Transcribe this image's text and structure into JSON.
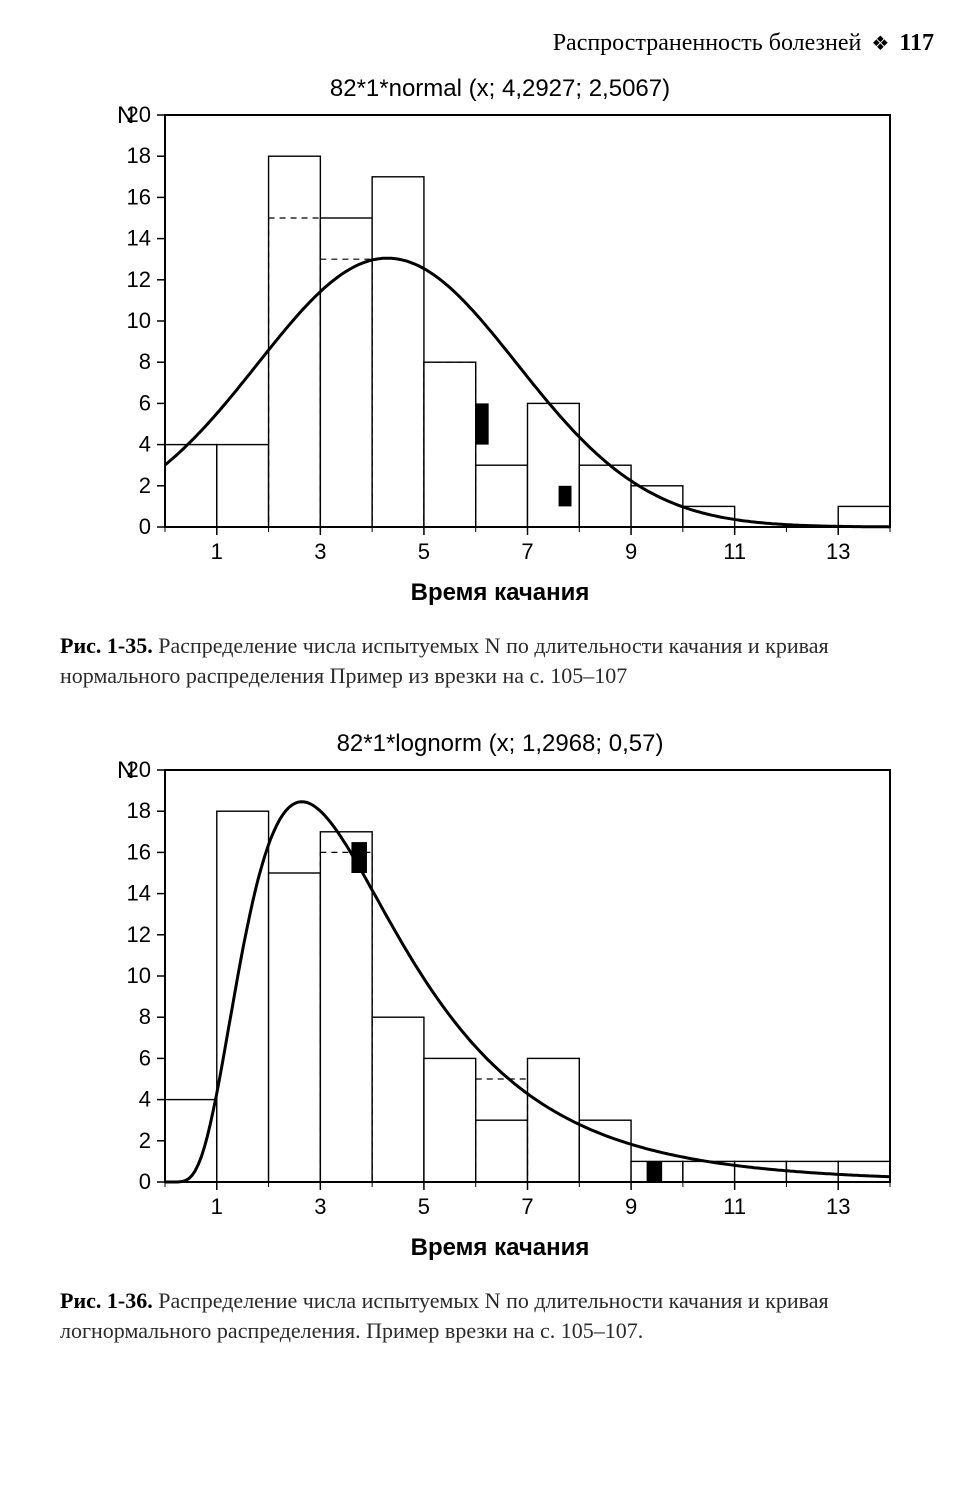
{
  "header": {
    "section_title": "Распространенность болезней",
    "page_number": "117"
  },
  "figure1": {
    "title": "82*1*normal  (x; 4,2927; 2,5067)",
    "ylabel": "N",
    "xlabel": "Время качания",
    "type": "histogram_with_curve",
    "xlim": [
      0,
      14
    ],
    "ylim": [
      0,
      20
    ],
    "ytick_step": 2,
    "xtick_start": 1,
    "xtick_step": 2,
    "xtick_end": 13,
    "bin_width": 1,
    "bar_fill": "#ffffff",
    "bar_stroke": "#000000",
    "bar_stroke_width": 1.4,
    "bars": [
      {
        "x": 0,
        "y": 4.0
      },
      {
        "x": 1,
        "y": 4.0
      },
      {
        "x": 2,
        "y": 18.0
      },
      {
        "x": 3,
        "y": 15.0
      },
      {
        "x": 4,
        "y": 17.0
      },
      {
        "x": 5,
        "y": 8.0
      },
      {
        "x": 6,
        "y": 3.0
      },
      {
        "x": 7,
        "y": 6.0
      },
      {
        "x": 8,
        "y": 3.0
      },
      {
        "x": 9,
        "y": 2.0
      },
      {
        "x": 10,
        "y": 1.0
      },
      {
        "x": 11,
        "y": 0.0
      },
      {
        "x": 12,
        "y": 0.0
      },
      {
        "x": 13,
        "y": 1.0
      }
    ],
    "overlay_bars_dashed": [
      {
        "x": 2,
        "y": 15.0
      },
      {
        "x": 3,
        "y": 13.0
      },
      {
        "x": 5,
        "y": 8.0
      }
    ],
    "solid_markers": [
      {
        "x": 6.0,
        "y0": 4.0,
        "y1": 6.0,
        "w": 0.25
      },
      {
        "x": 7.6,
        "y0": 1.0,
        "y1": 2.0,
        "w": 0.25
      }
    ],
    "curve": {
      "type": "normal",
      "amplitude": 82,
      "mu": 4.2927,
      "sigma": 2.5067,
      "color": "#000000",
      "width": 3
    },
    "axis_color": "#000000",
    "background_color": "#ffffff",
    "tick_fontsize": 22,
    "title_fontsize": 24
  },
  "caption1": {
    "label": "Рис. 1-35.",
    "text": "Распределение числа испытуемых N по длительности качания и кривая нормального распределения  Пример из врезки на с. 105–107"
  },
  "figure2": {
    "title": "82*1*lognorm  (x; 1,2968; 0,57)",
    "ylabel": "N",
    "xlabel": "Время качания",
    "type": "histogram_with_curve",
    "xlim": [
      0,
      14
    ],
    "ylim": [
      0,
      20
    ],
    "ytick_step": 2,
    "xtick_start": 1,
    "xtick_step": 2,
    "xtick_end": 13,
    "bin_width": 1,
    "bar_fill": "#ffffff",
    "bar_stroke": "#000000",
    "bar_stroke_width": 1.4,
    "bars": [
      {
        "x": 0,
        "y": 4.0
      },
      {
        "x": 1,
        "y": 18.0
      },
      {
        "x": 2,
        "y": 15.0
      },
      {
        "x": 3,
        "y": 17.0
      },
      {
        "x": 4,
        "y": 8.0
      },
      {
        "x": 5,
        "y": 6.0
      },
      {
        "x": 6,
        "y": 3.0
      },
      {
        "x": 7,
        "y": 6.0
      },
      {
        "x": 8,
        "y": 3.0
      },
      {
        "x": 9,
        "y": 1.0
      },
      {
        "x": 10,
        "y": 1.0
      },
      {
        "x": 11,
        "y": 1.0
      },
      {
        "x": 12,
        "y": 1.0
      },
      {
        "x": 13,
        "y": 1.0
      }
    ],
    "overlay_bars_dashed": [
      {
        "x": 3,
        "y": 16.0
      },
      {
        "x": 6,
        "y": 5.0
      }
    ],
    "solid_markers": [
      {
        "x": 3.6,
        "y0": 15.0,
        "y1": 16.5,
        "w": 0.3
      },
      {
        "x": 9.3,
        "y0": 0.0,
        "y1": 1.0,
        "w": 0.3
      }
    ],
    "curve": {
      "type": "lognormal",
      "amplitude": 82,
      "mu": 1.2968,
      "sigma": 0.57,
      "color": "#000000",
      "width": 3
    },
    "axis_color": "#000000",
    "background_color": "#ffffff",
    "tick_fontsize": 22,
    "title_fontsize": 24
  },
  "caption2": {
    "label": "Рис. 1-36.",
    "text": "Распределение числа испытуемых N по длительности качания и кривая логнормального распределения. Пример врезки на с. 105–107."
  }
}
